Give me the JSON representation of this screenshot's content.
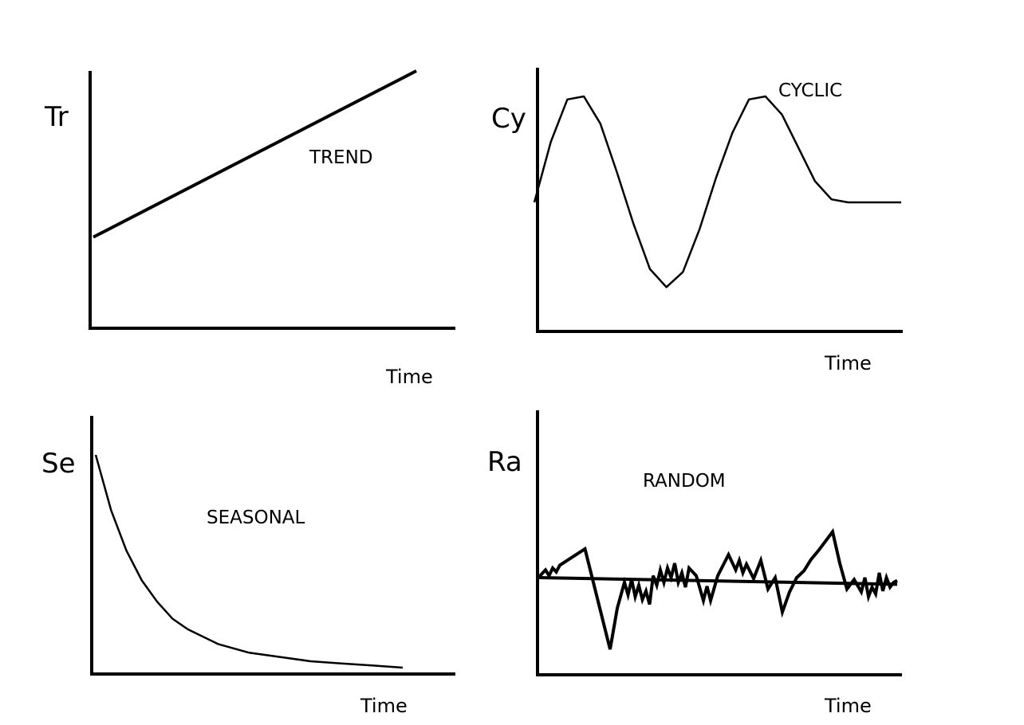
{
  "chart_data": [
    {
      "type": "line",
      "title": "TREND",
      "ylabel": "Tr",
      "xlabel": "Time",
      "series": [
        {
          "x": [
            0,
            1
          ],
          "values": [
            0.3,
            1.0
          ]
        }
      ]
    },
    {
      "type": "line",
      "title": "CYCLIC",
      "ylabel": "Cy",
      "xlabel": "Time",
      "series": [
        {
          "x": [
            0,
            0.045,
            0.09,
            0.135,
            0.18,
            0.225,
            0.27,
            0.315,
            0.36,
            0.405,
            0.45,
            0.495,
            0.54,
            0.585,
            0.63,
            0.675,
            0.72,
            0.765,
            0.81,
            0.855,
            0.9,
            0.945,
            1.0
          ],
          "values": [
            0.45,
            0.65,
            0.79,
            0.8,
            0.71,
            0.55,
            0.38,
            0.23,
            0.17,
            0.22,
            0.36,
            0.53,
            0.68,
            0.79,
            0.8,
            0.74,
            0.63,
            0.52,
            0.46,
            0.45,
            0.45,
            0.45,
            0.45
          ]
        }
      ]
    },
    {
      "type": "line",
      "title": "SEASONAL",
      "ylabel": "Se",
      "xlabel": "Time",
      "series": [
        {
          "x": [
            0,
            0.05,
            0.1,
            0.15,
            0.2,
            0.25,
            0.3,
            0.4,
            0.5,
            0.6,
            0.7,
            0.8,
            0.9,
            1.0
          ],
          "values": [
            1.0,
            0.74,
            0.55,
            0.41,
            0.31,
            0.23,
            0.18,
            0.11,
            0.07,
            0.05,
            0.03,
            0.02,
            0.01,
            0.0
          ]
        }
      ]
    },
    {
      "type": "line",
      "title": "RANDOM",
      "ylabel": "Ra",
      "xlabel": "Time",
      "series": [
        {
          "x": [
            0,
            0.02,
            0.03,
            0.04,
            0.05,
            0.06,
            0.13,
            0.2,
            0.22,
            0.24,
            0.25,
            0.26,
            0.27,
            0.28,
            0.29,
            0.3,
            0.31,
            0.32,
            0.33,
            0.34,
            0.35,
            0.36,
            0.37,
            0.38,
            0.39,
            0.4,
            0.41,
            0.42,
            0.44,
            0.46,
            0.47,
            0.48,
            0.5,
            0.53,
            0.55,
            0.56,
            0.57,
            0.58,
            0.6,
            0.62,
            0.64,
            0.66,
            0.68,
            0.7,
            0.72,
            0.74,
            0.76,
            0.78,
            0.8,
            0.82,
            0.84,
            0.86,
            0.88,
            0.9,
            0.91,
            0.92,
            0.93,
            0.94,
            0.95,
            0.96,
            0.97,
            0.98,
            0.99,
            1.0
          ],
          "values": [
            0.5,
            0.58,
            0.52,
            0.6,
            0.56,
            0.63,
            0.8,
            -0.25,
            0.18,
            0.45,
            0.32,
            0.48,
            0.3,
            0.42,
            0.27,
            0.36,
            0.22,
            0.52,
            0.42,
            0.58,
            0.45,
            0.6,
            0.5,
            0.65,
            0.45,
            0.55,
            0.4,
            0.6,
            0.52,
            0.26,
            0.41,
            0.26,
            0.52,
            0.74,
            0.58,
            0.68,
            0.55,
            0.64,
            0.49,
            0.68,
            0.38,
            0.5,
            0.14,
            0.35,
            0.5,
            0.57,
            0.69,
            0.78,
            0.88,
            0.98,
            0.65,
            0.38,
            0.48,
            0.35,
            0.5,
            0.3,
            0.4,
            0.33,
            0.55,
            0.36,
            0.5,
            0.4,
            0.45,
            0.47
          ]
        },
        {
          "x": [
            0,
            1
          ],
          "values": [
            0.5,
            0.43
          ]
        }
      ]
    }
  ]
}
